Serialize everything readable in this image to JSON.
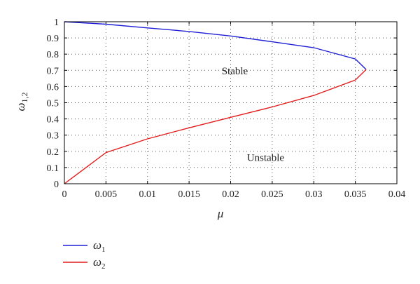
{
  "chart_data": {
    "type": "line",
    "xlabel": "μ",
    "ylabel": "ω1,2",
    "xlim": [
      0,
      0.04
    ],
    "ylim": [
      0,
      1
    ],
    "x_ticks": [
      "0",
      "0.005",
      "0.01",
      "0.015",
      "0.02",
      "0.025",
      "0.03",
      "0.035",
      "0.04"
    ],
    "y_ticks": [
      "0",
      "0.1",
      "0.2",
      "0.3",
      "0.4",
      "0.5",
      "0.6",
      "0.7",
      "0.8",
      "0.9",
      "1"
    ],
    "grid": true,
    "legend_position": "below",
    "annotations": [
      {
        "text": "Stable",
        "x": 0.0205,
        "y": 0.675
      },
      {
        "text": "Unstable",
        "x": 0.0242,
        "y": 0.14
      }
    ],
    "series": [
      {
        "name": "ω1",
        "color": "#1f1fd6",
        "x": [
          0,
          0.005,
          0.01,
          0.015,
          0.02,
          0.025,
          0.03,
          0.035,
          0.0363
        ],
        "y": [
          1,
          0.985,
          0.962,
          0.94,
          0.912,
          0.876,
          0.84,
          0.77,
          0.705
        ]
      },
      {
        "name": "ω2",
        "color": "#e21d1d",
        "x": [
          0,
          0.005,
          0.01,
          0.015,
          0.02,
          0.025,
          0.03,
          0.035,
          0.0363
        ],
        "y": [
          0,
          0.192,
          0.277,
          0.345,
          0.41,
          0.474,
          0.545,
          0.64,
          0.705
        ]
      }
    ]
  }
}
